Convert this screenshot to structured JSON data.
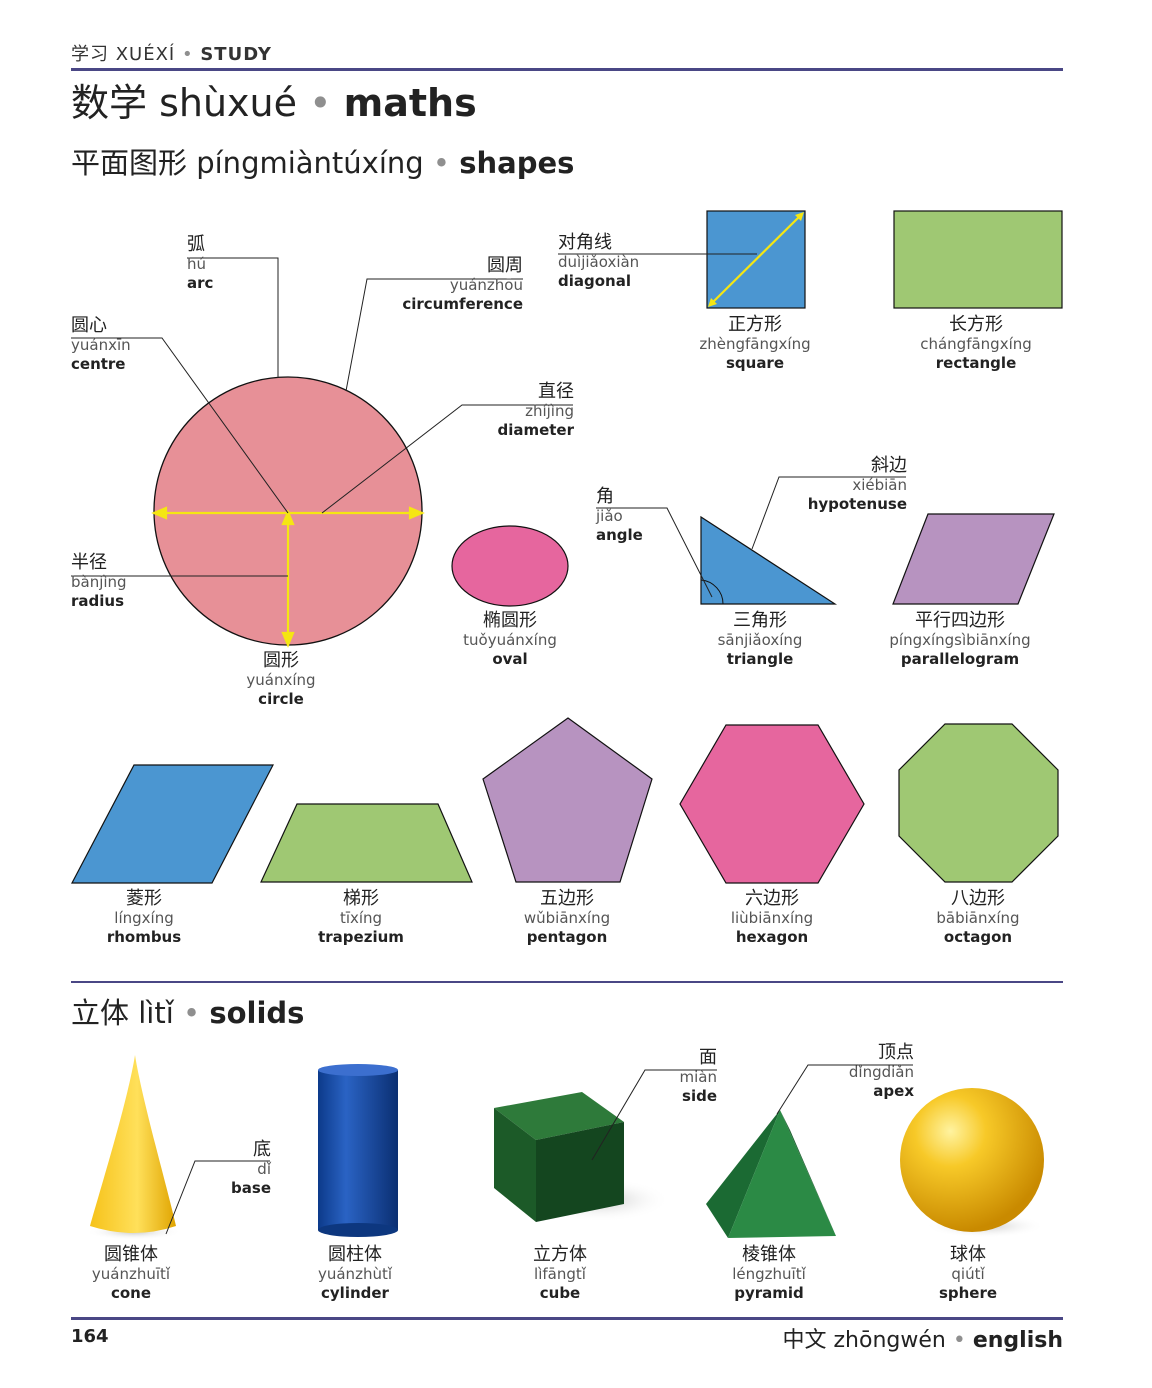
{
  "header": {
    "crumb_zh": "学习 XUÉXÍ",
    "crumb_en": "STUDY"
  },
  "title": {
    "zh": "数学 shùxué",
    "en": "maths"
  },
  "shapes_section": {
    "zh": "平面图形 píngmiàntúxíng",
    "en": "shapes"
  },
  "solids_section": {
    "zh": "立体 lìtǐ",
    "en": "solids"
  },
  "separator": "•",
  "circle_parts": {
    "arc": {
      "zh": "弧",
      "py": "hú",
      "en": "arc"
    },
    "circumference": {
      "zh": "圆周",
      "py": "yuánzhōu",
      "en": "circumference"
    },
    "centre": {
      "zh": "圆心",
      "py": "yuánxīn",
      "en": "centre"
    },
    "diameter": {
      "zh": "直径",
      "py": "zhíjìng",
      "en": "diameter"
    },
    "radius": {
      "zh": "半径",
      "py": "bànjìng",
      "en": "radius"
    },
    "circle": {
      "zh": "圆形",
      "py": "yuánxíng",
      "en": "circle"
    }
  },
  "diagonal": {
    "zh": "对角线",
    "py": "duìjiǎoxiàn",
    "en": "diagonal"
  },
  "square": {
    "zh": "正方形",
    "py": "zhèngfāngxíng",
    "en": "square"
  },
  "rectangle": {
    "zh": "长方形",
    "py": "chángfāngxíng",
    "en": "rectangle"
  },
  "oval": {
    "zh": "椭圆形",
    "py": "tuǒyuánxíng",
    "en": "oval"
  },
  "angle": {
    "zh": "角",
    "py": "jiǎo",
    "en": "angle"
  },
  "hypotenuse": {
    "zh": "斜边",
    "py": "xiébiān",
    "en": "hypotenuse"
  },
  "triangle": {
    "zh": "三角形",
    "py": "sānjiǎoxíng",
    "en": "triangle"
  },
  "parallelogram": {
    "zh": "平行四边形",
    "py": "píngxíngsìbiānxíng",
    "en": "parallelogram"
  },
  "rhombus": {
    "zh": "菱形",
    "py": "língxíng",
    "en": "rhombus"
  },
  "trapezium": {
    "zh": "梯形",
    "py": "tīxíng",
    "en": "trapezium"
  },
  "pentagon": {
    "zh": "五边形",
    "py": "wǔbiānxíng",
    "en": "pentagon"
  },
  "hexagon": {
    "zh": "六边形",
    "py": "liùbiānxíng",
    "en": "hexagon"
  },
  "octagon": {
    "zh": "八边形",
    "py": "bābiānxíng",
    "en": "octagon"
  },
  "base": {
    "zh": "底",
    "py": "dǐ",
    "en": "base"
  },
  "side": {
    "zh": "面",
    "py": "miàn",
    "en": "side"
  },
  "apex": {
    "zh": "顶点",
    "py": "dǐngdiǎn",
    "en": "apex"
  },
  "cone": {
    "zh": "圆锥体",
    "py": "yuánzhuītǐ",
    "en": "cone"
  },
  "cylinder": {
    "zh": "圆柱体",
    "py": "yuánzhùtǐ",
    "en": "cylinder"
  },
  "cube": {
    "zh": "立方体",
    "py": "lìfāngtǐ",
    "en": "cube"
  },
  "pyramid": {
    "zh": "棱锥体",
    "py": "léngzhuītǐ",
    "en": "pyramid"
  },
  "sphere": {
    "zh": "球体",
    "py": "qiútǐ",
    "en": "sphere"
  },
  "footer": {
    "page_number": "164",
    "lang_zh": "中文 zhōngwén",
    "lang_en": "english"
  },
  "colors": {
    "rule": "#4a4785",
    "circle": "#e79097",
    "blue": "#4b96d1",
    "green": "#9fc873",
    "purple": "#b793c0",
    "pink": "#e6669e",
    "yellow_line": "#f5e613"
  }
}
